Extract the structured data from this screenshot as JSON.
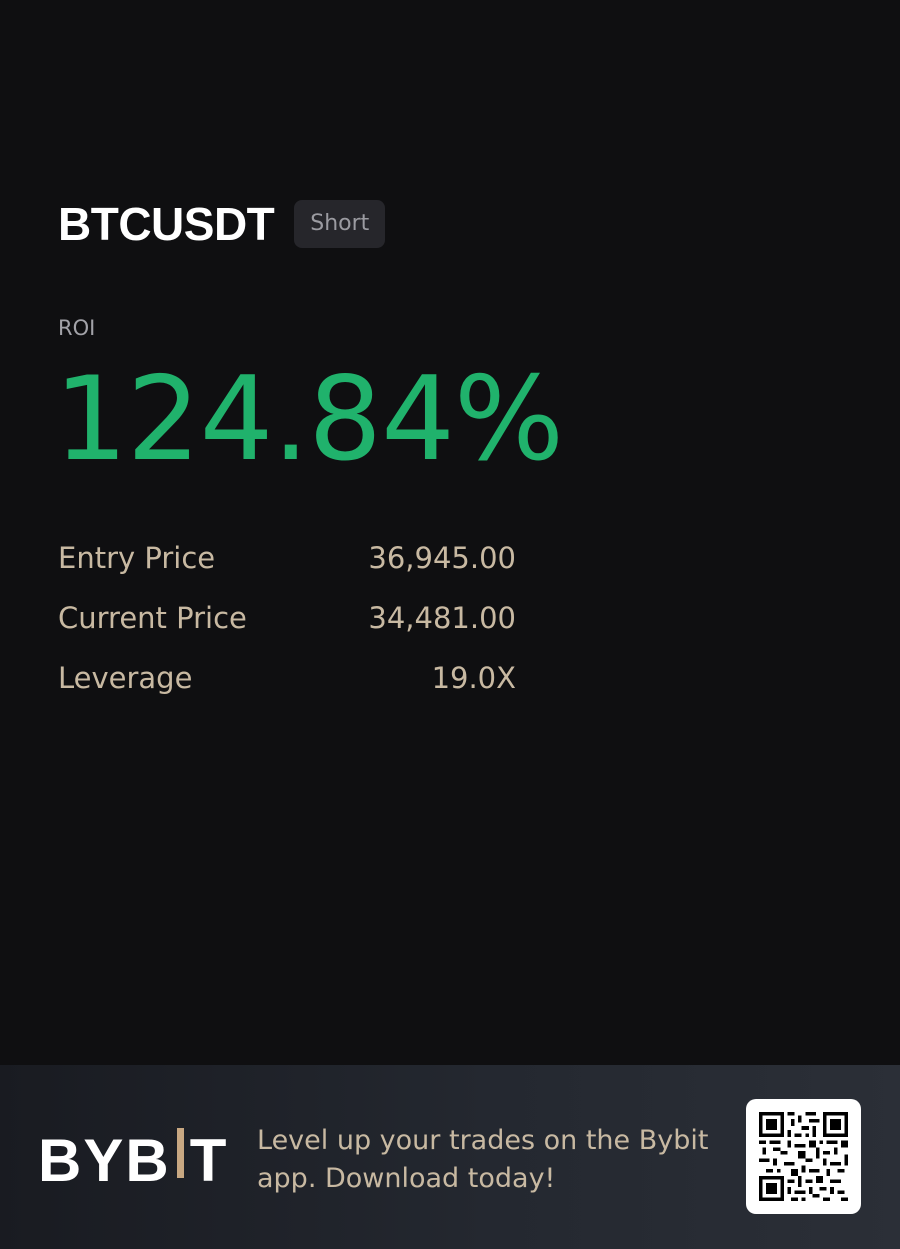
{
  "position": {
    "pair": "BTCUSDT",
    "side": "Short"
  },
  "roi": {
    "label": "ROI",
    "value": "124.84%"
  },
  "stats": [
    {
      "label": "Entry Price",
      "value": "36,945.00"
    },
    {
      "label": "Current Price",
      "value": "34,481.00"
    },
    {
      "label": "Leverage",
      "value": "19.0X"
    }
  ],
  "footer": {
    "logo_left": "BYB",
    "logo_right": "T",
    "tagline": "Level up your trades on the Bybit app. Download today!"
  },
  "colors": {
    "background": "#0f0f11",
    "roi_positive": "#20b26c",
    "accent_gold": "#c8a882",
    "stat_text": "#c8b9a2"
  },
  "icons": {
    "qr": "qr-code-icon"
  }
}
